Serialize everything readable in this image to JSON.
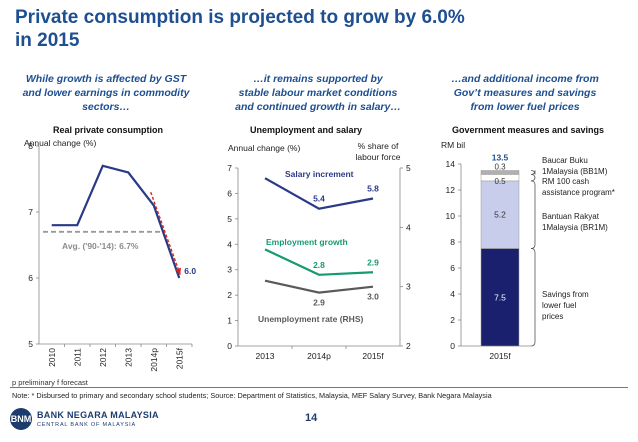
{
  "slide": {
    "title_line1": "Private consumption is projected to grow by 6.0%",
    "title_line2": "in 2015",
    "heads": [
      [
        "While growth is affected by GST",
        "and lower earnings in commodity",
        "sectors…"
      ],
      [
        "…it remains supported by",
        "stable labour market conditions",
        "and continued growth in salary…"
      ],
      [
        "…and additional income from",
        "Gov’t measures and savings",
        "from lower fuel prices"
      ]
    ],
    "footnote": "p preliminary   f forecast",
    "note": "Note: * Disbursed to primary and secondary school students; Source: Department of Statistics, Malaysia, MEF Salary Survey, Bank Negara Malaysia",
    "logo_mark": "BNM",
    "logo_name": "BANK NEGARA MALAYSIA",
    "logo_sub": "CENTRAL BANK OF MALAYSIA",
    "page_number": "14"
  },
  "chart_data": [
    {
      "type": "line",
      "title": "Real private consumption",
      "ylabel": "Annual change (%)",
      "x": [
        "2010",
        "2011",
        "2012",
        "2013",
        "2014p",
        "2015f"
      ],
      "series": [
        {
          "values": [
            6.8,
            6.8,
            7.7,
            7.6,
            7.1,
            6.0
          ],
          "color": "#2a3a86"
        }
      ],
      "ylim": [
        5,
        8
      ],
      "yticks": [
        5,
        6,
        7,
        8
      ],
      "data_labels": [
        {
          "x": "2015f",
          "value": "6.0"
        }
      ],
      "reference_line": {
        "value": 6.7,
        "label": "Avg. ('90-'14): 6.7%",
        "color": "#9a9a9a"
      },
      "annotation": "red arrow pointing down to 2015f"
    },
    {
      "type": "line",
      "title": "Unemployment and salary",
      "ylabel": "Annual change (%)",
      "ylabel_right": "% share of labour force",
      "x": [
        "2013",
        "2014p",
        "2015f"
      ],
      "ylim": [
        0,
        7
      ],
      "yticks": [
        0,
        1,
        2,
        3,
        4,
        5,
        6,
        7
      ],
      "ylim_right": [
        2,
        5
      ],
      "yticks_right": [
        2,
        3,
        4,
        5
      ],
      "series": [
        {
          "name": "Salary increment",
          "axis": "left",
          "values": [
            6.6,
            5.4,
            5.8
          ],
          "labels": [
            "",
            "5.4",
            "5.8"
          ],
          "color": "#2a3a86"
        },
        {
          "name": "Employment growth",
          "axis": "left",
          "values": [
            3.8,
            2.8,
            2.9
          ],
          "labels": [
            "",
            "2.8",
            "2.9"
          ],
          "color": "#159a72"
        },
        {
          "name": "Unemployment rate (RHS)",
          "axis": "right",
          "values": [
            3.1,
            2.9,
            3.0
          ],
          "labels": [
            "",
            "2.9",
            "3.0"
          ],
          "color": "#5a5a5a"
        }
      ]
    },
    {
      "type": "bar",
      "stacked": true,
      "title": "Government measures and savings",
      "ylabel": "RM bil",
      "categories": [
        "2015f"
      ],
      "ylim": [
        0,
        14
      ],
      "yticks": [
        0,
        2,
        4,
        6,
        8,
        10,
        12,
        14
      ],
      "total_label": "13.5",
      "series": [
        {
          "name": "Savings from lower fuel prices",
          "value": 7.5,
          "color": "#1a1f6e"
        },
        {
          "name": "Bantuan Rakyat 1Malaysia (BR1M)",
          "value": 5.2,
          "color": "#c7cdeb"
        },
        {
          "name": "RM 100 cash assistance program*",
          "value": 0.5,
          "color": "#ffffff"
        },
        {
          "name": "Baucar Buku 1Malaysia (BB1M)",
          "value": 0.3,
          "color": "#b0b0b0"
        }
      ],
      "legend_lines": [
        [
          "Baucar Buku",
          "1Malaysia (BB1M)"
        ],
        [
          "RM 100 cash",
          "assistance program*"
        ],
        [
          "Bantuan Rakyat",
          "1Malaysia (BR1M)"
        ],
        [
          "Savings from",
          "lower fuel",
          "prices"
        ]
      ]
    }
  ]
}
